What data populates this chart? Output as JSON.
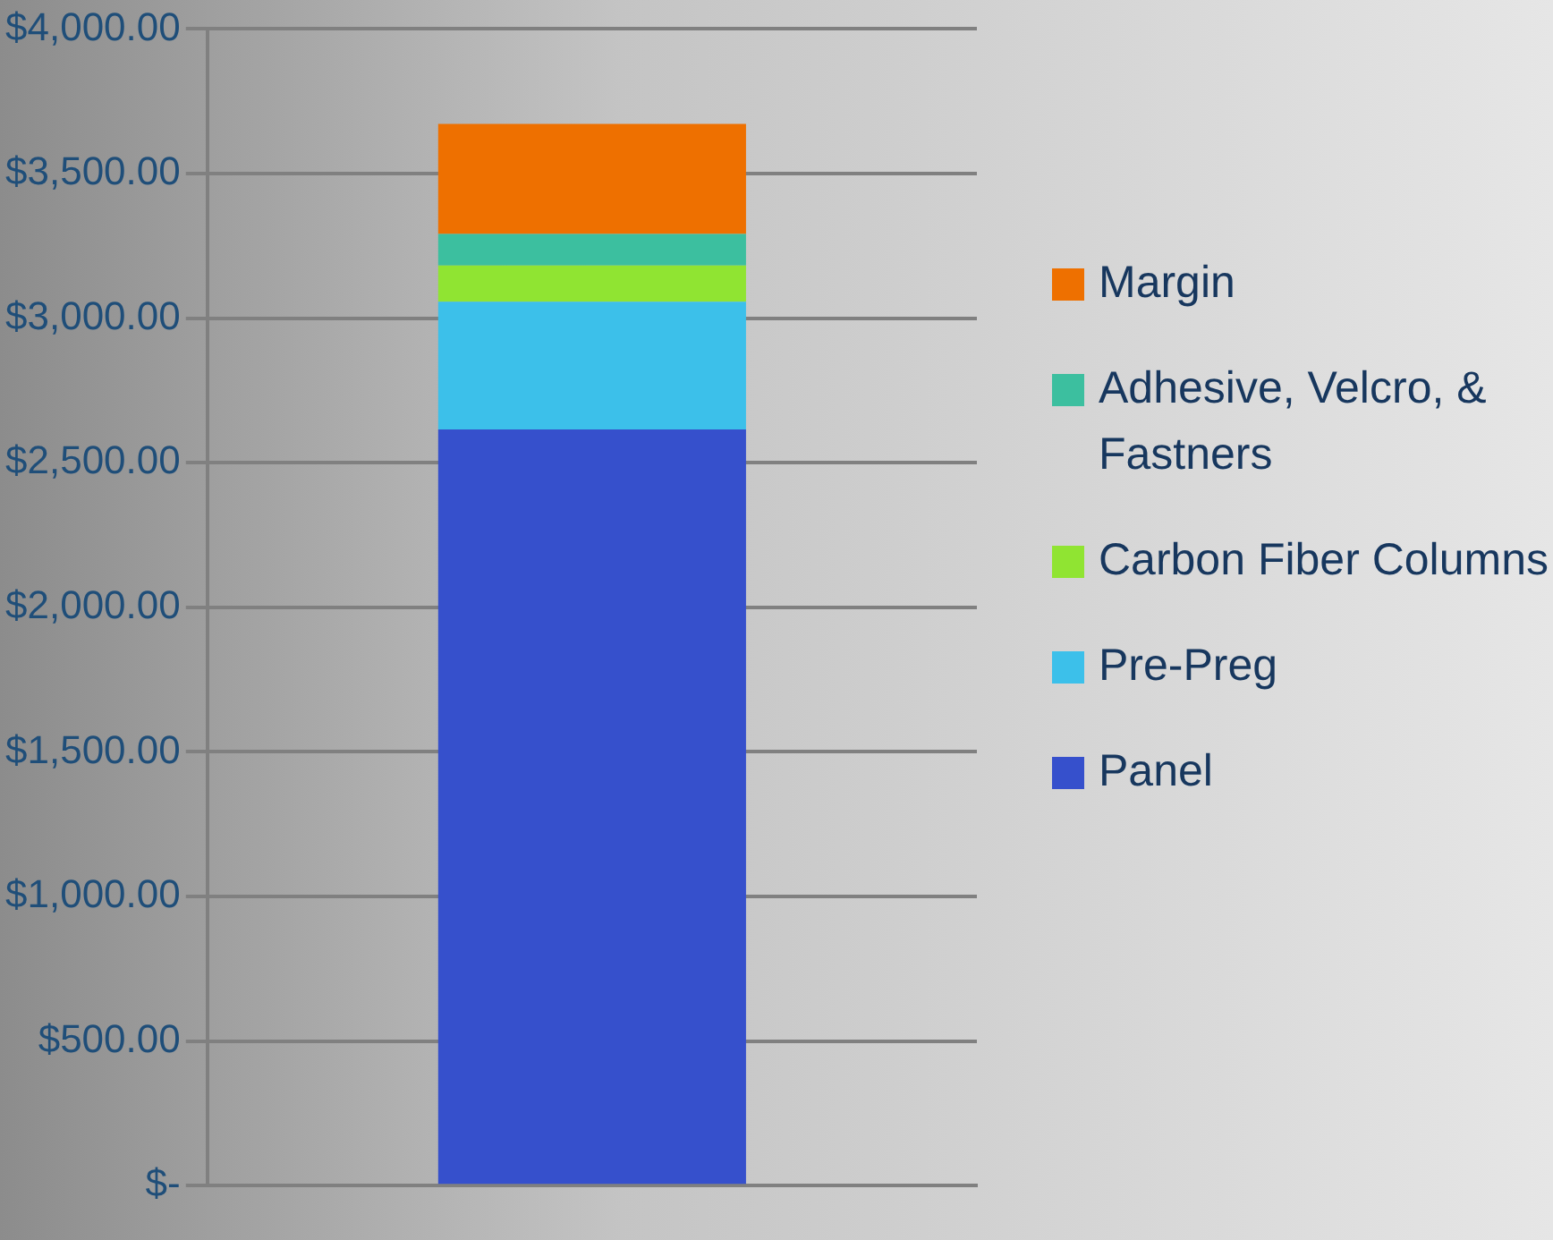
{
  "chart_data": {
    "type": "bar",
    "stacked": true,
    "categories": [
      null
    ],
    "series": [
      {
        "name": "Panel",
        "color": "#3650cc",
        "values": [
          2615
        ]
      },
      {
        "name": "Pre-Preg",
        "color": "#3cc0ea",
        "values": [
          442
        ]
      },
      {
        "name": "Carbon Fiber Columns",
        "color": "#90e432",
        "values": [
          125
        ]
      },
      {
        "name": "Adhesive, Velcro, & Fastners",
        "color": "#3cbf9f",
        "values": [
          109
        ]
      },
      {
        "name": "Margin",
        "color": "#ee7000",
        "values": [
          381
        ]
      }
    ],
    "ylim": [
      0,
      4000
    ],
    "yticks": [
      {
        "value": 0,
        "label": "$-"
      },
      {
        "value": 500,
        "label": "$500.00"
      },
      {
        "value": 1000,
        "label": "$1,000.00"
      },
      {
        "value": 1500,
        "label": "$1,500.00"
      },
      {
        "value": 2000,
        "label": "$2,000.00"
      },
      {
        "value": 2500,
        "label": "$2,500.00"
      },
      {
        "value": 3000,
        "label": "$3,000.00"
      },
      {
        "value": 3500,
        "label": "$3,500.00"
      },
      {
        "value": 4000,
        "label": "$4,000.00"
      }
    ],
    "grid": "y",
    "legend": "right"
  }
}
